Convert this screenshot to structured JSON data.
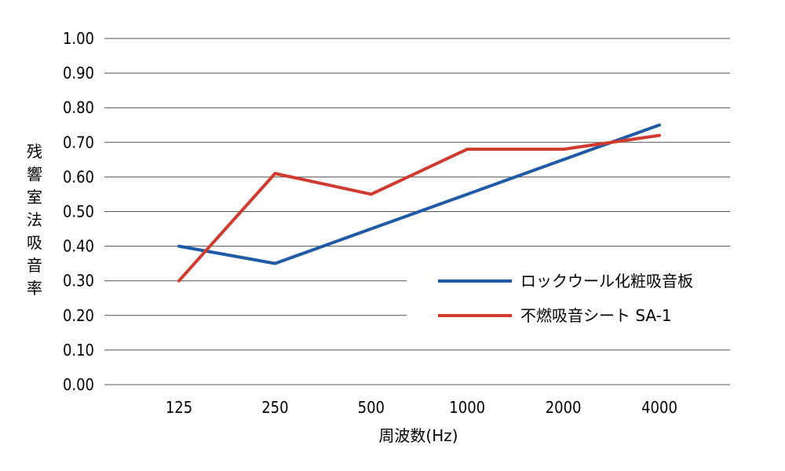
{
  "chart_data": {
    "type": "line",
    "title": "",
    "xlabel": "周波数(Hz)",
    "ylabel": "残響室法吸音率",
    "categories": [
      "125",
      "250",
      "500",
      "1000",
      "2000",
      "4000"
    ],
    "ylim": [
      0,
      1
    ],
    "yticks": [
      "0.00",
      "0.10",
      "0.20",
      "0.30",
      "0.40",
      "0.50",
      "0.60",
      "0.70",
      "0.80",
      "0.90",
      "1.00"
    ],
    "grid": true,
    "legend_position": "bottom-right",
    "series": [
      {
        "name": "ロックウール化粧吸音板",
        "color": "#1f5aa6",
        "values": [
          0.4,
          0.35,
          0.45,
          0.55,
          0.65,
          0.75
        ]
      },
      {
        "name": "不燃吸音シート SA-1",
        "color": "#d03a2f",
        "values": [
          0.3,
          0.61,
          0.55,
          0.68,
          0.68,
          0.72
        ]
      }
    ]
  }
}
